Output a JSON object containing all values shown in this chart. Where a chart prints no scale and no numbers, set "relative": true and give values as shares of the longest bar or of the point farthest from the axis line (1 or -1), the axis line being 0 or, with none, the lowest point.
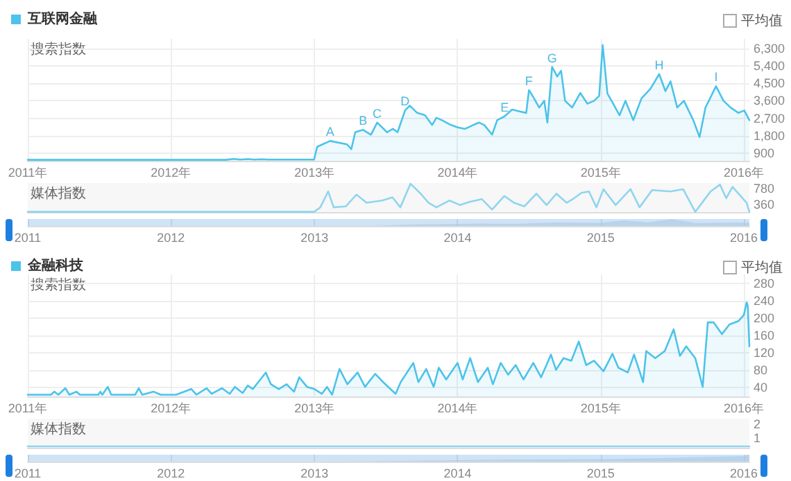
{
  "chart_data": [
    {
      "type": "area",
      "ylabel": "搜索指数",
      "legend": "top left",
      "grid": true,
      "marker": "none",
      "annotations": [
        "平均值",
        {
          "text": "A",
          "x": "2013-02-10",
          "y": 1525
        },
        {
          "text": "B",
          "x": "2013-05-05",
          "y": 2100
        },
        {
          "text": "C",
          "x": "2013-06-10",
          "y": 2475
        },
        {
          "text": "D",
          "x": "2013-08-20",
          "y": 3100
        },
        {
          "text": "E",
          "x": "2014-05-01",
          "y": 2800
        },
        {
          "text": "F",
          "x": "2014-07-02",
          "y": 4150
        },
        {
          "text": "G",
          "x": "2014-08-30",
          "y": 5350
        },
        {
          "text": "H",
          "x": "2015-05-30",
          "y": 4975
        },
        {
          "text": "I",
          "x": "2015-10-22",
          "y": 4350
        }
      ],
      "xlim": [
        "2011-01-01",
        "2016-01-15"
      ],
      "xticks": [
        {
          "value": "2011-01-01",
          "label": "2011年"
        },
        {
          "value": "2012-01-01",
          "label": "2012年"
        },
        {
          "value": "2013-01-01",
          "label": "2013年"
        },
        {
          "value": "2014-01-01",
          "label": "2014年"
        },
        {
          "value": "2015-01-01",
          "label": "2015年"
        },
        {
          "value": "2016-01-01",
          "label": "2016年"
        }
      ],
      "ylim": [
        500,
        6800
      ],
      "yticks": [
        900,
        {
          "value": 1800,
          "label": "1,800"
        },
        {
          "value": 2700,
          "label": "2,700"
        },
        {
          "value": 3600,
          "label": "3,600"
        },
        {
          "value": 4500,
          "label": "4,500"
        },
        {
          "value": 5400,
          "label": "5,400"
        },
        {
          "value": 6300,
          "label": "6,300"
        }
      ],
      "x": [
        "2011-01-01",
        "2012-05-20",
        "2012-06-10",
        "2012-06-25",
        "2012-07-15",
        "2012-08-01",
        "2012-08-20",
        "2012-09-05",
        "2012-12-31",
        "2013-01-08",
        "2013-02-10",
        "2013-03-25",
        "2013-04-05",
        "2013-04-15",
        "2013-05-05",
        "2013-05-25",
        "2013-06-10",
        "2013-07-05",
        "2013-07-20",
        "2013-08-01",
        "2013-08-20",
        "2013-09-01",
        "2013-09-20",
        "2013-10-10",
        "2013-10-28",
        "2013-11-08",
        "2013-11-22",
        "2013-12-15",
        "2014-01-01",
        "2014-01-20",
        "2014-02-10",
        "2014-02-25",
        "2014-03-10",
        "2014-03-30",
        "2014-04-12",
        "2014-05-01",
        "2014-05-20",
        "2014-06-08",
        "2014-06-25",
        "2014-07-02",
        "2014-07-15",
        "2014-07-28",
        "2014-08-10",
        "2014-08-18",
        "2014-08-30",
        "2014-09-12",
        "2014-09-22",
        "2014-10-02",
        "2014-10-20",
        "2014-11-10",
        "2014-11-28",
        "2014-12-15",
        "2014-12-28",
        "2015-01-06",
        "2015-01-18",
        "2015-02-01",
        "2015-02-18",
        "2015-03-05",
        "2015-03-25",
        "2015-04-15",
        "2015-05-08",
        "2015-05-30",
        "2015-06-15",
        "2015-06-28",
        "2015-07-15",
        "2015-08-01",
        "2015-08-25",
        "2015-09-10",
        "2015-09-25",
        "2015-10-22",
        "2015-11-10",
        "2015-11-28",
        "2015-12-18",
        "2016-01-02",
        "2016-01-15"
      ],
      "series": [
        {
          "name": "互联网金融",
          "color": "#4cc3ea",
          "values": [
            550,
            550,
            600,
            560,
            590,
            560,
            580,
            565,
            565,
            1225,
            1525,
            1350,
            1100,
            1975,
            2100,
            1850,
            2475,
            1975,
            2150,
            1975,
            3100,
            3350,
            2975,
            2850,
            2350,
            2725,
            2600,
            2350,
            2225,
            2150,
            2350,
            2475,
            2350,
            1850,
            2600,
            2800,
            3150,
            3050,
            2975,
            4150,
            3725,
            3250,
            3600,
            2475,
            5350,
            4850,
            5150,
            3600,
            3250,
            4000,
            3450,
            3600,
            3850,
            6475,
            3975,
            3475,
            2850,
            3600,
            2600,
            3725,
            4225,
            4975,
            4100,
            4600,
            3250,
            3600,
            2600,
            1725,
            3250,
            4350,
            3600,
            3250,
            2975,
            3100,
            2600
          ]
        }
      ]
    },
    {
      "type": "line",
      "ylabel": "媒体指数",
      "tick_labels": "y",
      "marker": "none",
      "xlim": [
        "2011-01-01",
        "2016-01-15"
      ],
      "ylim": [
        150,
        920
      ],
      "yticks": [
        360,
        780
      ],
      "x": [
        "2011-01-01",
        "2012-12-31",
        "2013-01-16",
        "2013-02-05",
        "2013-02-19",
        "2013-03-22",
        "2013-04-18",
        "2013-05-14",
        "2013-06-23",
        "2013-07-19",
        "2013-08-08",
        "2013-09-03",
        "2013-09-29",
        "2013-10-19",
        "2013-11-08",
        "2013-12-11",
        "2014-01-07",
        "2014-02-01",
        "2014-03-04",
        "2014-03-30",
        "2014-04-30",
        "2014-05-25",
        "2014-06-20",
        "2014-07-21",
        "2014-08-16",
        "2014-09-10",
        "2014-10-06",
        "2014-10-25",
        "2014-11-13",
        "2014-12-02",
        "2014-12-21",
        "2015-01-08",
        "2015-02-08",
        "2015-03-18",
        "2015-04-10",
        "2015-05-12",
        "2015-06-28",
        "2015-07-30",
        "2015-08-30",
        "2015-10-08",
        "2015-11-01",
        "2015-11-17",
        "2015-12-03",
        "2016-01-08",
        "2016-01-15"
      ],
      "series": [
        {
          "color": "#8fd5ee",
          "values": [
            156,
            156,
            276,
            696,
            276,
            300,
            612,
            396,
            456,
            540,
            276,
            900,
            636,
            396,
            276,
            456,
            336,
            420,
            492,
            216,
            576,
            396,
            300,
            636,
            336,
            636,
            396,
            516,
            660,
            696,
            276,
            756,
            336,
            756,
            276,
            732,
            696,
            756,
            156,
            696,
            876,
            516,
            816,
            396,
            156
          ]
        }
      ]
    },
    {
      "type": "area",
      "relative": true,
      "tick_labels": "x",
      "marker": "none",
      "xlim": [
        "2011-01-01",
        "2016-01-15"
      ],
      "xticks": [
        {
          "value": "2011-01-01",
          "label": "2011"
        },
        {
          "value": "2012-01-01",
          "label": "2012"
        },
        {
          "value": "2013-01-01",
          "label": "2013"
        },
        {
          "value": "2014-01-01",
          "label": "2014"
        },
        {
          "value": "2015-01-01",
          "label": "2015"
        },
        {
          "value": "2016-01-01",
          "label": "2016"
        }
      ],
      "x": [
        "2011-01-01",
        "2013-06-01",
        "2013-09-01",
        "2014-03-01",
        "2014-06-01",
        "2014-09-01",
        "2015-01-01",
        "2015-03-01",
        "2015-05-01",
        "2015-07-01",
        "2015-09-01",
        "2015-12-01",
        "2016-01-15"
      ],
      "series": [
        {
          "color": "#a8c8e6",
          "values": [
            0,
            0,
            0.2,
            0.35,
            0.3,
            0.5,
            0.45,
            0.8,
            0.5,
            1,
            0.4,
            0.5,
            0.45
          ]
        }
      ]
    },
    {
      "type": "area",
      "ylabel": "搜索指数",
      "legend": "top left",
      "grid": true,
      "marker": "none",
      "annotations": [
        "平均值"
      ],
      "xlim": [
        "2011-01-01",
        "2016-01-15"
      ],
      "xticks": [
        {
          "value": "2011-01-01",
          "label": "2011年"
        },
        {
          "value": "2012-01-01",
          "label": "2012年"
        },
        {
          "value": "2013-01-01",
          "label": "2013年"
        },
        {
          "value": "2014-01-01",
          "label": "2014年"
        },
        {
          "value": "2015-01-01",
          "label": "2015年"
        },
        {
          "value": "2016-01-01",
          "label": "2016年"
        }
      ],
      "ylim": [
        20,
        300
      ],
      "yticks": [
        40,
        80,
        120,
        160,
        200,
        240,
        280
      ],
      "x": [
        "2011-01-01",
        "2011-03-01",
        "2011-03-10",
        "2011-03-20",
        "2011-04-07",
        "2011-04-17",
        "2011-05-05",
        "2011-05-14",
        "2011-06-30",
        "2011-07-05",
        "2011-07-10",
        "2011-07-24",
        "2011-08-02",
        "2011-10-02",
        "2011-10-11",
        "2011-10-20",
        "2011-11-18",
        "2011-12-06",
        "2012-01-14",
        "2012-02-22",
        "2012-03-06",
        "2012-04-01",
        "2012-04-14",
        "2012-05-10",
        "2012-05-30",
        "2012-06-12",
        "2012-07-02",
        "2012-07-15",
        "2012-07-28",
        "2012-08-30",
        "2012-09-12",
        "2012-10-02",
        "2012-10-22",
        "2012-11-10",
        "2012-11-23",
        "2012-12-13",
        "2013-01-01",
        "2013-01-20",
        "2013-02-02",
        "2013-02-15",
        "2013-03-06",
        "2013-03-26",
        "2013-04-21",
        "2013-05-10",
        "2013-06-05",
        "2013-06-25",
        "2013-07-27",
        "2013-08-09",
        "2013-09-10",
        "2013-09-23",
        "2013-10-13",
        "2013-11-01",
        "2013-11-14",
        "2013-12-03",
        "2014-01-01",
        "2014-01-14",
        "2014-02-02",
        "2014-02-22",
        "2014-03-19",
        "2014-04-01",
        "2014-04-21",
        "2014-05-10",
        "2014-05-29",
        "2014-06-18",
        "2014-07-13",
        "2014-08-02",
        "2014-08-27",
        "2014-09-09",
        "2014-09-28",
        "2014-10-18",
        "2014-11-06",
        "2014-11-25",
        "2014-12-15",
        "2015-01-08",
        "2015-01-31",
        "2015-02-15",
        "2015-03-11",
        "2015-03-27",
        "2015-04-19",
        "2015-04-27",
        "2015-05-20",
        "2015-06-13",
        "2015-07-06",
        "2015-07-22",
        "2015-08-07",
        "2015-08-30",
        "2015-09-18",
        "2015-10-01",
        "2015-10-16",
        "2015-11-06",
        "2015-11-25",
        "2015-12-18",
        "2016-01-01",
        "2016-01-08",
        "2016-01-11",
        "2016-01-15"
      ],
      "series": [
        {
          "name": "金融科技",
          "color": "#4cc3ea",
          "values": [
            24,
            24,
            31,
            24,
            39,
            24,
            31,
            24,
            24,
            31,
            24,
            42,
            24,
            24,
            39,
            24,
            31,
            24,
            24,
            37,
            24,
            39,
            26,
            39,
            26,
            42,
            28,
            45,
            37,
            75,
            48,
            37,
            48,
            31,
            64,
            42,
            37,
            26,
            42,
            24,
            83,
            48,
            75,
            42,
            72,
            53,
            26,
            53,
            97,
            53,
            83,
            42,
            86,
            59,
            97,
            59,
            108,
            53,
            86,
            48,
            97,
            70,
            92,
            59,
            97,
            64,
            116,
            81,
            108,
            102,
            146,
            92,
            102,
            78,
            118,
            86,
            75,
            116,
            53,
            124,
            108,
            124,
            174,
            113,
            135,
            108,
            42,
            190,
            190,
            163,
            185,
            193,
            207,
            236,
            228,
            135
          ]
        }
      ]
    },
    {
      "type": "line",
      "ylabel": "媒体指数",
      "tick_labels": "y",
      "marker": "none",
      "xlim": [
        "2011-01-01",
        "2016-01-15"
      ],
      "ylim": [
        0.3,
        2.4
      ],
      "yticks": [
        1,
        2
      ],
      "x": [
        "2011-01-01",
        "2016-01-15"
      ],
      "series": [
        {
          "color": "#8fd5ee",
          "values": [
            0.4,
            0.4
          ]
        }
      ]
    },
    {
      "type": "area",
      "relative": true,
      "tick_labels": "x",
      "marker": "none",
      "xlim": [
        "2011-01-01",
        "2016-01-15"
      ],
      "xticks": [
        {
          "value": "2011-01-01",
          "label": "2011"
        },
        {
          "value": "2012-01-01",
          "label": "2012"
        },
        {
          "value": "2013-01-01",
          "label": "2013"
        },
        {
          "value": "2014-01-01",
          "label": "2014"
        },
        {
          "value": "2015-01-01",
          "label": "2015"
        },
        {
          "value": "2016-01-01",
          "label": "2016"
        }
      ],
      "x": [
        "2011-01-01",
        "2013-01-01",
        "2013-06-01",
        "2014-01-01",
        "2014-06-01",
        "2015-01-01",
        "2015-06-01",
        "2016-01-01",
        "2016-01-15"
      ],
      "series": [
        {
          "color": "#a8c8e6",
          "values": [
            0,
            0,
            0.05,
            0.2,
            0.3,
            0.35,
            0.5,
            0.8,
            1
          ]
        }
      ]
    }
  ]
}
